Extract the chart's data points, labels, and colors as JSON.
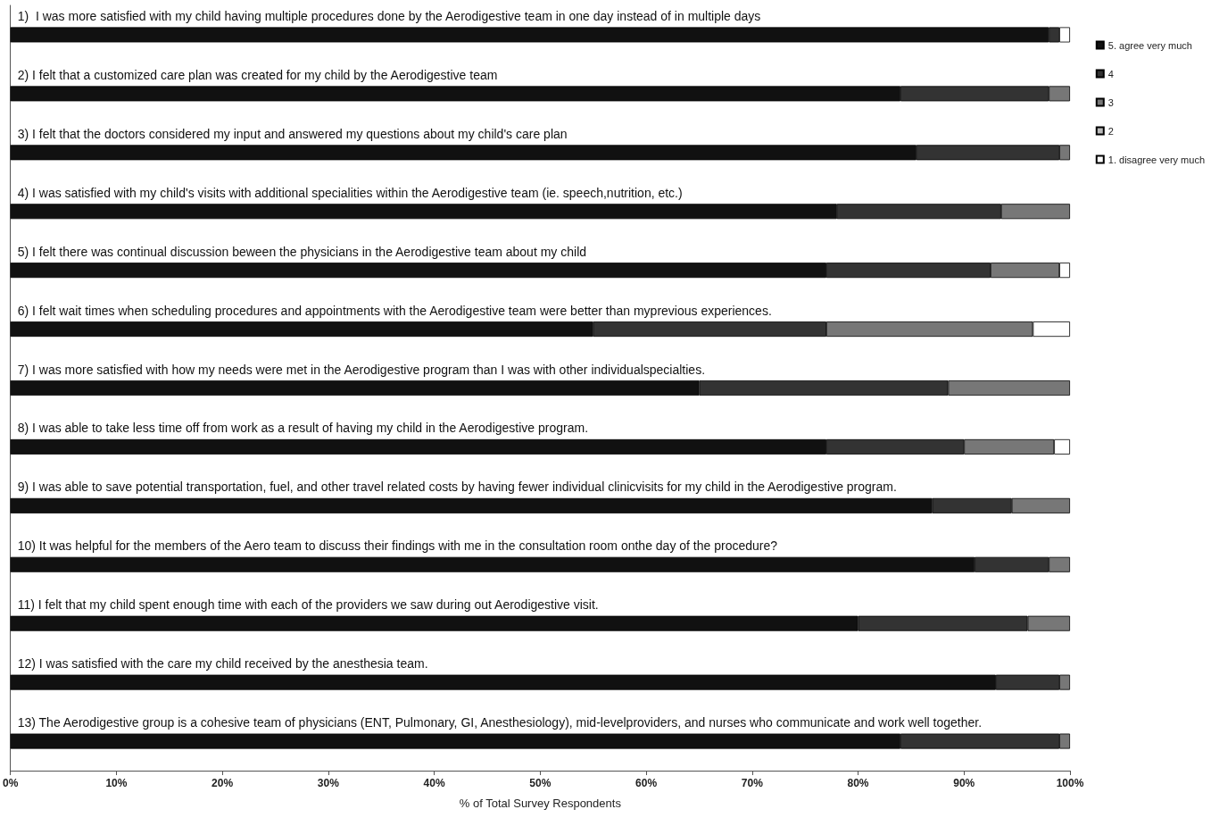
{
  "chart_data": {
    "type": "bar",
    "orientation": "horizontal",
    "stacked": true,
    "xlabel": "% of Total Survey Respondents",
    "categories": [
      "1)  I was more satisfied with my child having multiple procedures done by the Aerodigestive team in one day instead of in multiple days",
      "2) I felt that a customized care plan was created for my child by the Aerodigestive team",
      "3) I felt that the doctors considered my input and answered my questions about my child's care plan",
      "4) I was satisfied with my child's visits with additional specialities within the Aerodigestive team (ie. speech,nutrition, etc.)",
      "5) I felt there was continual discussion beween the physicians in the Aerodigestive team about my child",
      "6) I felt wait times when scheduling procedures and appointments with the Aerodigestive team were better than myprevious experiences.",
      "7) I was more satisfied with how my needs were met in the Aerodigestive program than I was with other individualspecialties.",
      "8) I was able to take less time off from work as a result of having my child in the Aerodigestive program.",
      "9) I was able to save potential transportation, fuel, and other travel related costs by having fewer individual clinicvisits for my child in the Aerodigestive program.",
      "10) It was helpful for the members of the Aero team to discuss their findings with me in the consultation room onthe day of the procedure?",
      "11) I felt that my child spent enough time with each of the providers we saw during out Aerodigestive visit.",
      "12) I was satisfied with the care my child received by the anesthesia team.",
      "13) The Aerodigestive group is a cohesive team of physicians (ENT, Pulmonary, GI, Anesthesiology), mid-levelproviders, and nurses who communicate and work well together."
    ],
    "series": [
      {
        "name": "5. agree very much",
        "color": "#111111",
        "values": [
          98,
          84,
          85.5,
          78,
          77,
          55,
          65,
          77,
          87,
          91,
          80,
          93,
          84
        ]
      },
      {
        "name": "4",
        "color": "#333333",
        "values": [
          1,
          14,
          13.5,
          15.5,
          15.5,
          22,
          23.5,
          13,
          7.5,
          7,
          16,
          6,
          15
        ]
      },
      {
        "name": "3",
        "color": "#777777",
        "values": [
          0,
          2,
          1,
          6.5,
          6.5,
          19.5,
          11.5,
          8.5,
          5.5,
          2,
          4,
          1,
          1
        ]
      },
      {
        "name": "2",
        "color": "#bbbbbb",
        "values": [
          0,
          0,
          0,
          0,
          0,
          0,
          0,
          0,
          0,
          0,
          0,
          0,
          0
        ]
      },
      {
        "name": "1. disagree very much",
        "color": "#ffffff",
        "values": [
          1,
          0,
          0,
          0,
          1,
          3.5,
          0,
          1.5,
          0,
          0,
          0,
          0,
          0
        ]
      }
    ],
    "xlim": [
      0,
      100
    ],
    "xticks": [
      {
        "value": 0,
        "label": "0%"
      },
      {
        "value": 10,
        "label": "10%"
      },
      {
        "value": 20,
        "label": "20%"
      },
      {
        "value": 30,
        "label": "30%"
      },
      {
        "value": 40,
        "label": "40%"
      },
      {
        "value": 50,
        "label": "50%"
      },
      {
        "value": 60,
        "label": "60%"
      },
      {
        "value": 70,
        "label": "70%"
      },
      {
        "value": 80,
        "label": "80%"
      },
      {
        "value": 90,
        "label": "90%"
      },
      {
        "value": 100,
        "label": "100%"
      }
    ],
    "grid": false,
    "legend": "top right"
  }
}
